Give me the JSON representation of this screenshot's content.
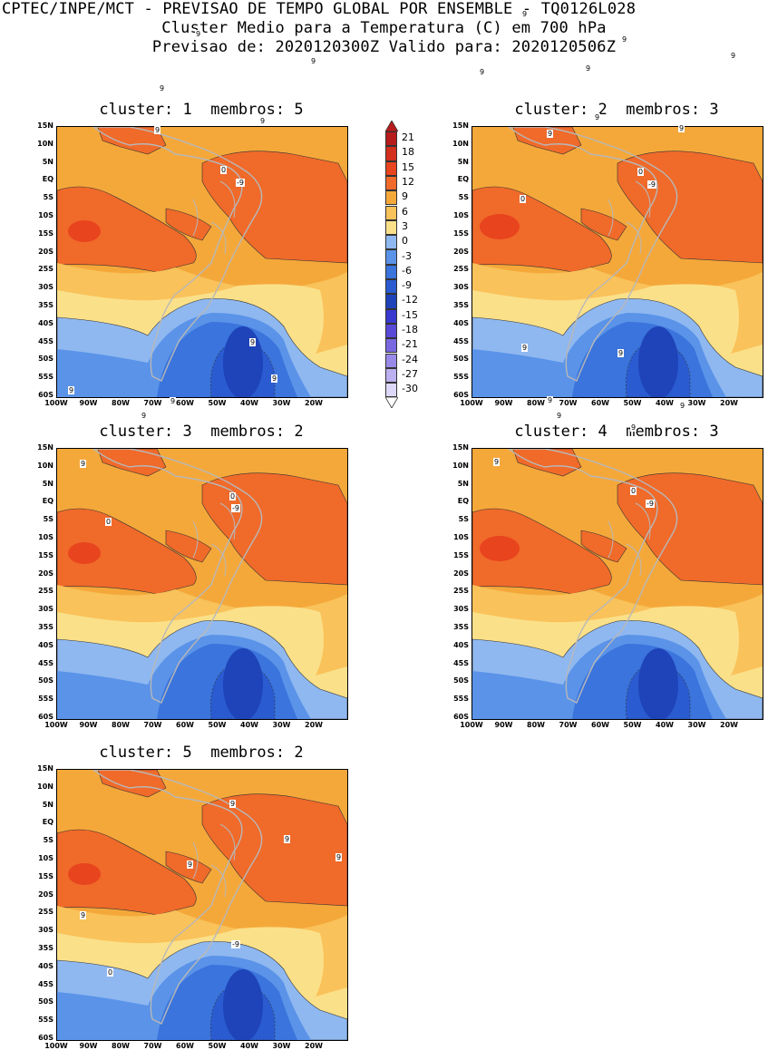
{
  "header": {
    "line1": "CPTEC/INPE/MCT - PREVISAO DE TEMPO GLOBAL POR ENSEMBLE - TQ0126L028",
    "line2": "Cluster Medio para a Temperatura (C) em 700 hPa",
    "line3": "Previsao de: 2020120300Z   Valido para: 2020120506Z"
  },
  "axes": {
    "lat_labels": [
      "15N",
      "10N",
      "5N",
      "EQ",
      "5S",
      "10S",
      "15S",
      "20S",
      "25S",
      "30S",
      "35S",
      "40S",
      "45S",
      "50S",
      "55S",
      "60S"
    ],
    "lon_labels": [
      "100W",
      "90W",
      "80W",
      "70W",
      "60W",
      "50W",
      "40W",
      "30W",
      "20W"
    ]
  },
  "panels": [
    {
      "title": "cluster: 1  membros: 5",
      "contour_labels": [
        "9",
        "9",
        "9",
        "9",
        "9",
        "0",
        "-9"
      ]
    },
    {
      "title": "cluster: 2  membros: 3",
      "contour_labels": [
        "9",
        "9",
        "9",
        "9",
        "9",
        "9",
        "9",
        "9",
        "0",
        "0",
        "-9"
      ]
    },
    {
      "title": "cluster: 3  membros: 2",
      "contour_labels": [
        "9",
        "9",
        "9",
        "9",
        "9",
        "9",
        "0",
        "0",
        "-9"
      ]
    },
    {
      "title": "cluster: 4  membros: 3",
      "contour_labels": [
        "9",
        "9",
        "9",
        "9",
        "9",
        "9",
        "9",
        "0",
        "-9"
      ]
    },
    {
      "title": "cluster: 5  membros: 2",
      "contour_labels": [
        "9",
        "9",
        "9",
        "9",
        "9",
        "0",
        "-9"
      ]
    }
  ],
  "legend": {
    "labels": [
      "21",
      "18",
      "15",
      "12",
      "9",
      "6",
      "3",
      "0",
      "-3",
      "-6",
      "-9",
      "-12",
      "-15",
      "-18",
      "-21",
      "-24",
      "-27",
      "-30"
    ],
    "colors": [
      "#b71c1c",
      "#d32f1f",
      "#e8441e",
      "#f06a2a",
      "#f5a83a",
      "#f9c25a",
      "#fbe08a",
      "#8fb8f0",
      "#5a93e8",
      "#3a74dc",
      "#2a5bd0",
      "#1f43b8",
      "#3a3ad0",
      "#5a4ad8",
      "#7a68e0",
      "#9a8ae8",
      "#bcb0f0",
      "#ddd8f8"
    ]
  },
  "colors": {
    "c12": "#f06a2a",
    "c9": "#f5a83a",
    "c6": "#f9c25a",
    "c3": "#fbe08a",
    "cm3": "#8fb8f0",
    "cm6": "#5a93e8",
    "cm9": "#3a74dc",
    "cm12": "#2a5bd0",
    "cm15": "#1f43b8",
    "land": "#b8b8b8"
  }
}
